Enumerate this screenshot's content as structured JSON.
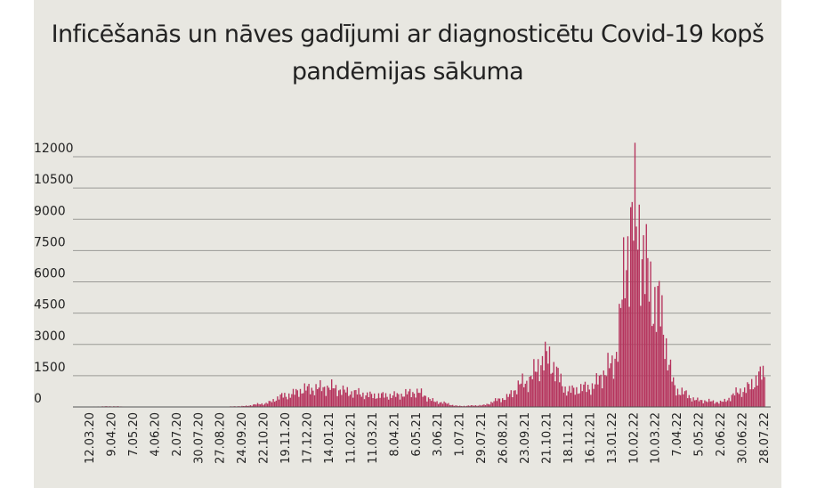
{
  "chart_data": {
    "type": "bar",
    "title": "Inficēšanās un nāves gadījumi ar diagnosticētu Covid-19 kopš pandēmijas sākuma",
    "xlabel": "",
    "ylabel": "",
    "ylim": [
      0,
      12000
    ],
    "yticks": [
      0,
      1500,
      3000,
      4500,
      6000,
      7500,
      9000,
      10500,
      12000
    ],
    "grid": true,
    "legend": "none",
    "x_tick_labels": [
      "12.03.20",
      "9.04.20",
      "7.05.20",
      "4.06.20",
      "2.07.20",
      "30.07.20",
      "27.08.20",
      "24.09.20",
      "22.10.20",
      "19.11.20",
      "17.12.20",
      "14.01.21",
      "11.02.21",
      "11.03.21",
      "8.04.21",
      "6.05.21",
      "3.06.21",
      "1.07.21",
      "29.07.21",
      "26.08.21",
      "23.09.21",
      "21.10.21",
      "18.11.21",
      "16.12.21",
      "13.01.22",
      "10.02.22",
      "10.03.22",
      "7.04.22",
      "5.05.22",
      "2.06.22",
      "30.06.22",
      "28.07.22"
    ],
    "series": [
      {
        "color": "#b5325c",
        "approx_values_at_ticks": [
          20,
          40,
          15,
          5,
          5,
          5,
          10,
          50,
          200,
          700,
          1100,
          1200,
          900,
          700,
          700,
          900,
          300,
          60,
          100,
          500,
          1500,
          3000,
          1000,
          1200,
          2500,
          11500,
          6500,
          1000,
          400,
          300,
          1000,
          2000
        ]
      }
    ]
  }
}
